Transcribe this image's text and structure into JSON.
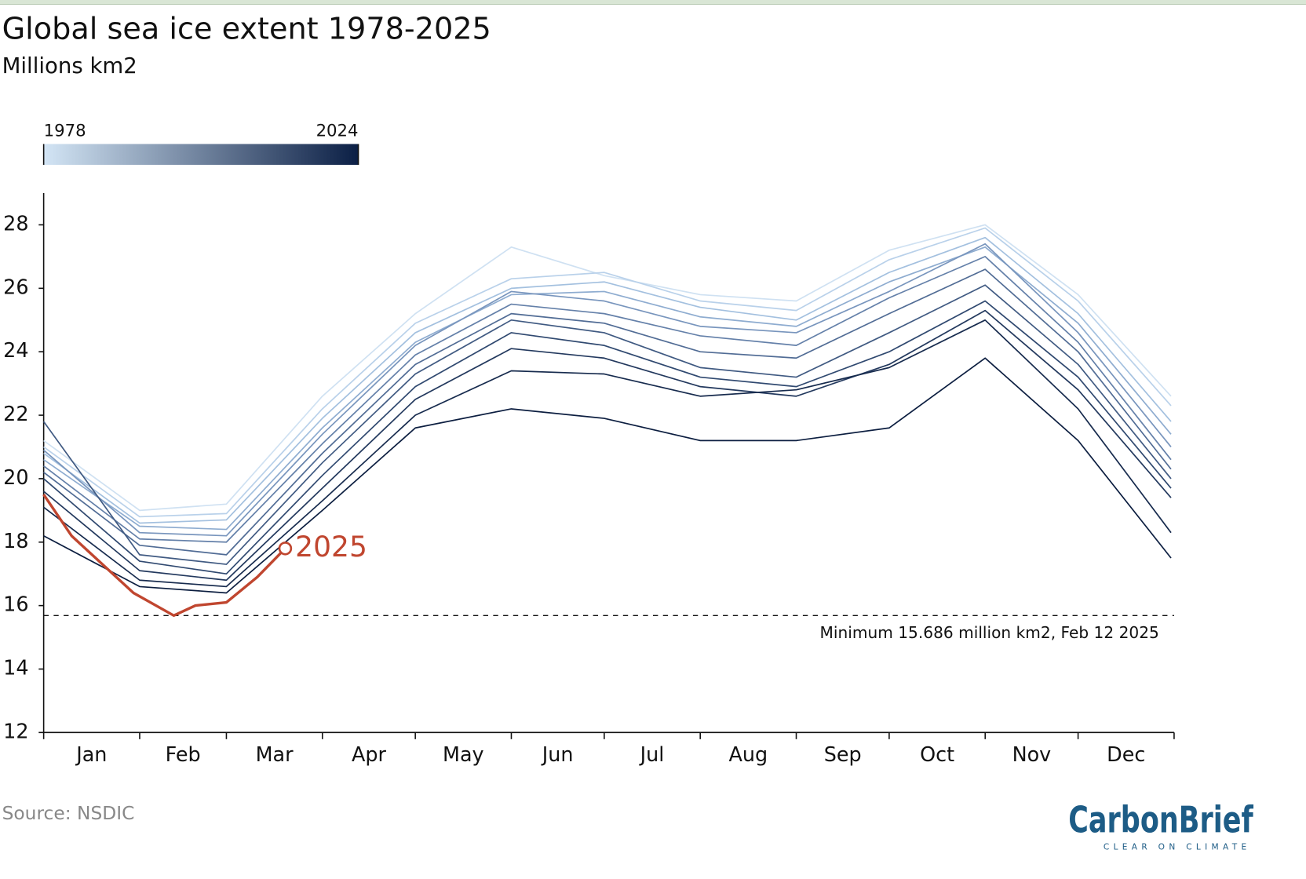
{
  "chart_data": {
    "type": "line",
    "title": "Global sea ice extent 1978-2025",
    "subtitle": "Millions km2",
    "source": "Source: NSDIC",
    "brand": {
      "name": "CarbonBrief",
      "tagline": "CLEAR ON CLIMATE"
    },
    "colorbar": {
      "labels": [
        "1978",
        "2024"
      ],
      "colors": [
        "#d3e5f5",
        "#0b1f45"
      ]
    },
    "xlim": [
      1,
      366
    ],
    "xticks": [
      1,
      32,
      60,
      91,
      121,
      152,
      182,
      213,
      244,
      274,
      305,
      335,
      366
    ],
    "months": [
      "Jan",
      "Feb",
      "Mar",
      "Apr",
      "May",
      "Jun",
      "Jul",
      "Aug",
      "Sep",
      "Oct",
      "Nov",
      "Dec"
    ],
    "ylim": [
      12,
      29
    ],
    "yticks": [
      12,
      14,
      16,
      18,
      20,
      22,
      24,
      26,
      28
    ],
    "x": [
      1,
      32,
      60,
      91,
      121,
      152,
      182,
      213,
      244,
      274,
      305,
      335,
      365
    ],
    "series": [
      {
        "color": "#cfe1f2",
        "values": [
          21.2,
          19.0,
          19.2,
          22.6,
          25.2,
          27.3,
          26.4,
          25.8,
          25.6,
          27.2,
          28.0,
          25.8,
          22.6
        ]
      },
      {
        "color": "#b9d1ea",
        "values": [
          21.0,
          18.8,
          18.9,
          22.2,
          24.9,
          26.3,
          26.5,
          25.6,
          25.3,
          26.9,
          27.9,
          25.6,
          22.3
        ]
      },
      {
        "color": "#a3c0df",
        "values": [
          20.8,
          18.6,
          18.7,
          21.9,
          24.6,
          26.0,
          26.2,
          25.4,
          25.0,
          26.5,
          27.6,
          25.2,
          21.8
        ]
      },
      {
        "color": "#8eacd0",
        "values": [
          20.6,
          18.5,
          18.4,
          21.6,
          24.3,
          25.8,
          25.9,
          25.1,
          24.8,
          26.2,
          27.3,
          24.9,
          21.4
        ]
      },
      {
        "color": "#7895bd",
        "values": [
          20.9,
          18.3,
          18.2,
          21.4,
          24.2,
          25.9,
          25.6,
          24.8,
          24.6,
          25.9,
          27.4,
          24.6,
          21.0
        ]
      },
      {
        "color": "#6480a9",
        "values": [
          20.4,
          18.1,
          18.0,
          21.1,
          23.9,
          25.5,
          25.2,
          24.5,
          24.2,
          25.7,
          27.0,
          24.3,
          20.6
        ]
      },
      {
        "color": "#516c95",
        "values": [
          20.2,
          17.9,
          17.6,
          20.8,
          23.6,
          25.2,
          24.9,
          24.0,
          23.8,
          25.2,
          26.6,
          24.0,
          20.3
        ]
      },
      {
        "color": "#405a82",
        "values": [
          21.8,
          17.6,
          17.3,
          20.5,
          23.3,
          25.0,
          24.6,
          23.5,
          23.2,
          24.6,
          26.1,
          23.6,
          20.0
        ]
      },
      {
        "color": "#304970",
        "values": [
          20.0,
          17.4,
          17.0,
          20.1,
          22.9,
          24.6,
          24.2,
          23.2,
          22.9,
          24.0,
          25.6,
          23.2,
          19.7
        ]
      },
      {
        "color": "#23395e",
        "values": [
          19.6,
          17.1,
          16.8,
          19.7,
          22.5,
          24.1,
          23.8,
          22.9,
          22.6,
          23.6,
          25.3,
          22.8,
          19.4
        ]
      },
      {
        "color": "#172b4e",
        "values": [
          19.1,
          16.8,
          16.6,
          19.3,
          22.0,
          23.4,
          23.3,
          22.6,
          22.8,
          23.5,
          25.0,
          22.2,
          18.3
        ]
      },
      {
        "color": "#0c1e40",
        "values": [
          18.2,
          16.6,
          16.4,
          19.0,
          21.6,
          22.2,
          21.9,
          21.2,
          21.2,
          21.6,
          23.8,
          21.2,
          17.5
        ]
      }
    ],
    "highlight": {
      "name": "2025",
      "color": "#c0462f",
      "x": [
        1,
        10,
        20,
        30,
        43,
        50,
        60,
        70,
        79
      ],
      "values": [
        19.5,
        18.2,
        17.3,
        16.4,
        15.686,
        16.0,
        16.1,
        16.9,
        17.8
      ]
    },
    "min_line": {
      "value": 15.686,
      "label": "Minimum 15.686 million km2, Feb 12 2025"
    }
  }
}
